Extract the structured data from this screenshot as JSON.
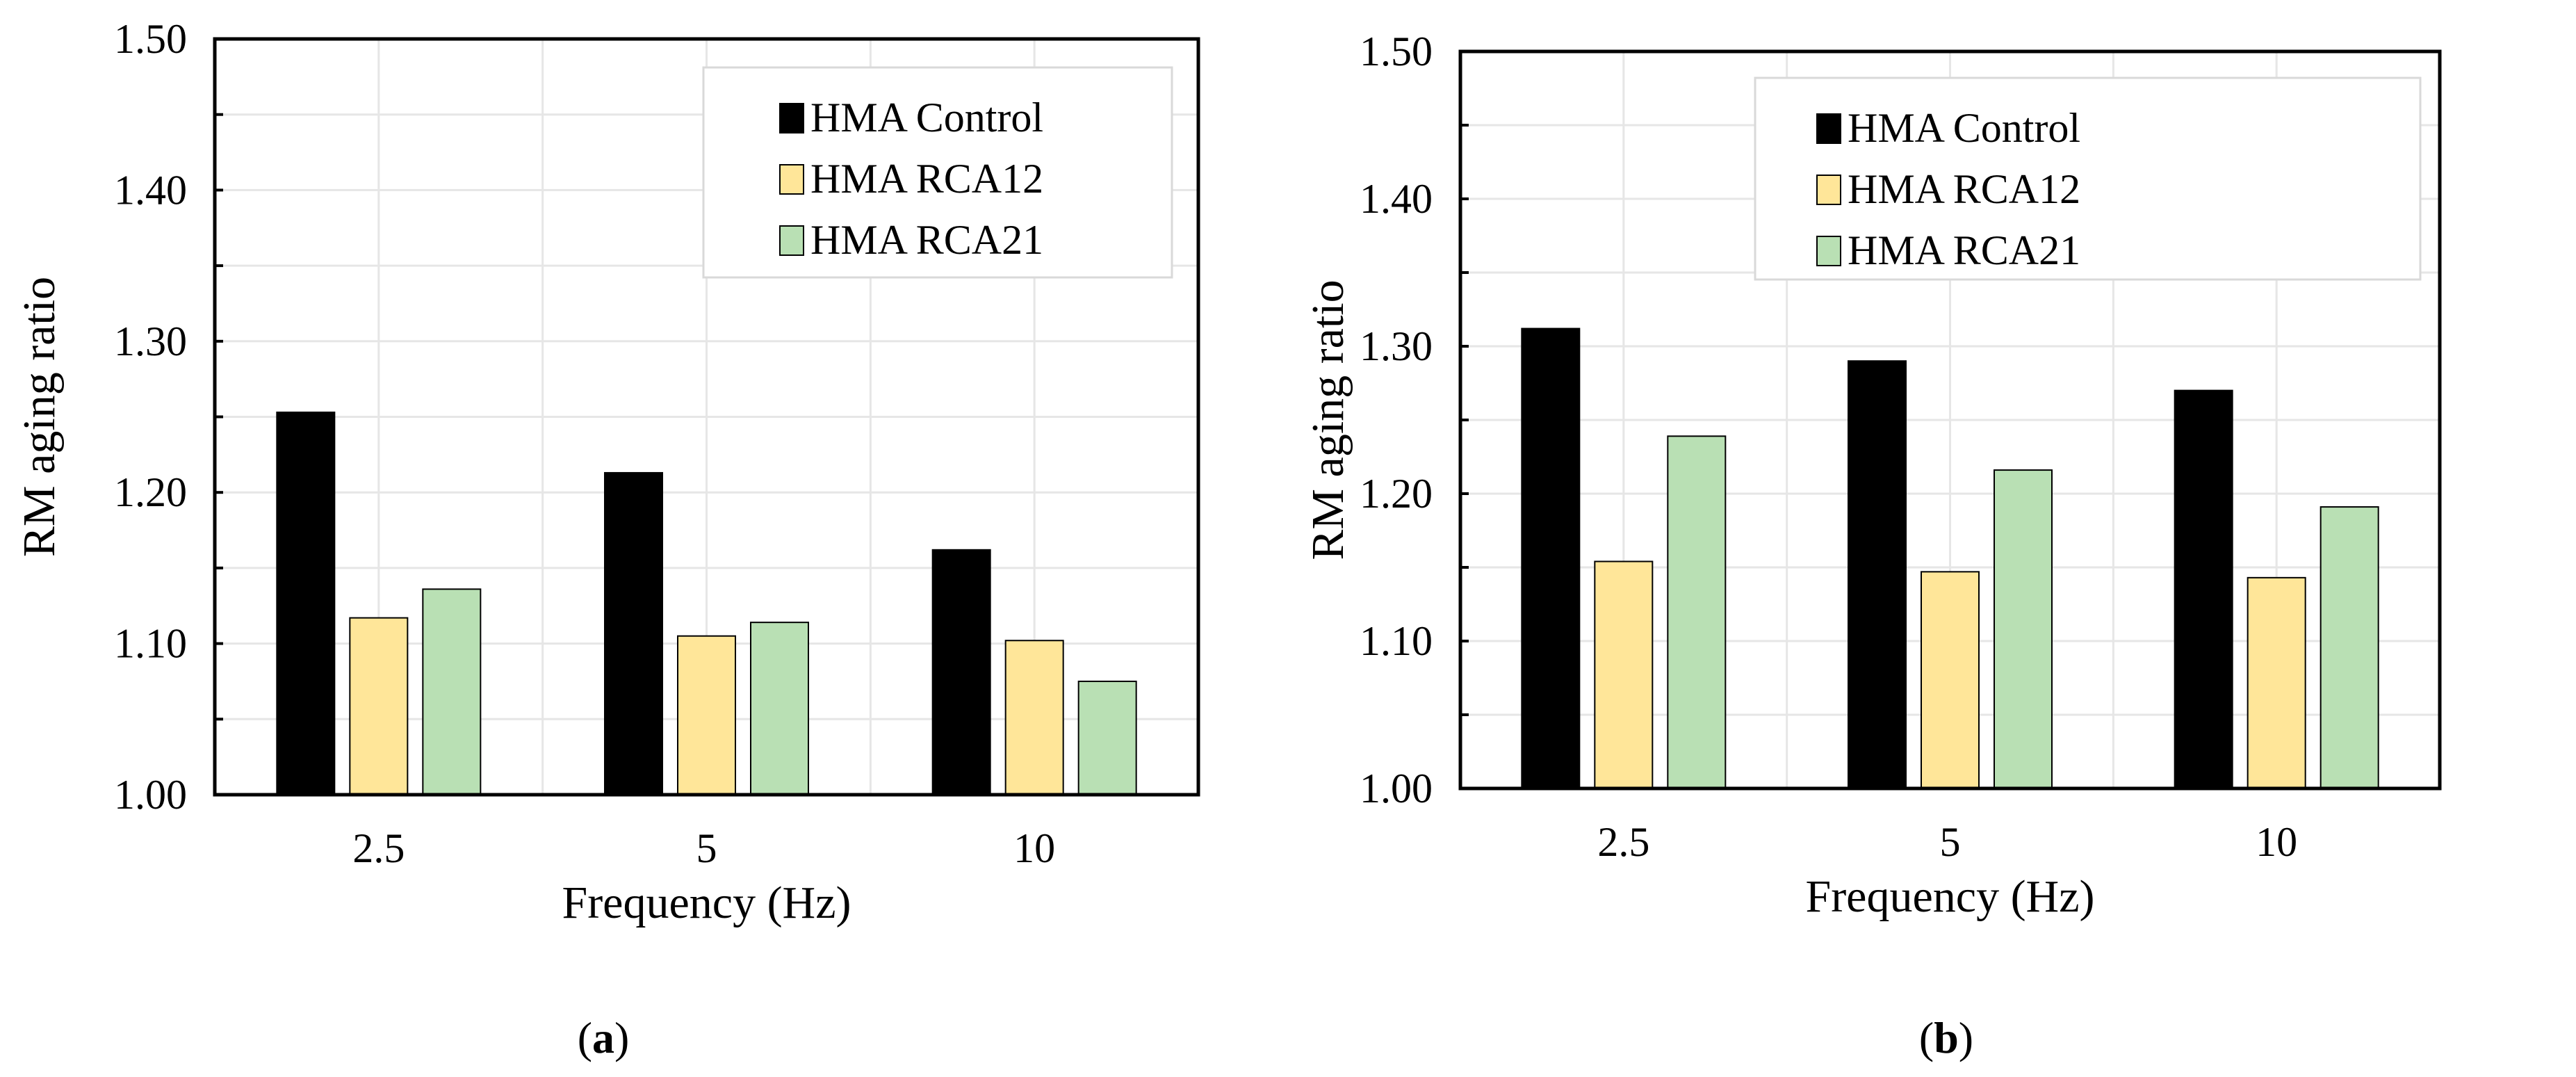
{
  "chart_data": [
    {
      "type": "bar",
      "panel_label": "(a)",
      "panel_letter": "a",
      "xlabel": "Frequency (Hz)",
      "ylabel": "RM aging ratio",
      "categories": [
        "2.5",
        "5",
        "10"
      ],
      "ylim": [
        1.0,
        1.5
      ],
      "yticks": [
        "1.00",
        "1.10",
        "1.20",
        "1.30",
        "1.40",
        "1.50"
      ],
      "grid": true,
      "legend_position": "top-right",
      "series": [
        {
          "name": "HMA Control",
          "color": "#000000",
          "values": [
            1.253,
            1.213,
            1.162
          ]
        },
        {
          "name": "HMA RCA12",
          "color": "#FFE699",
          "values": [
            1.117,
            1.105,
            1.102
          ]
        },
        {
          "name": "HMA RCA21",
          "color": "#B9E0B4",
          "values": [
            1.136,
            1.114,
            1.075
          ]
        }
      ]
    },
    {
      "type": "bar",
      "panel_label": "(b)",
      "panel_letter": "b",
      "xlabel": "Frequency (Hz)",
      "ylabel": "RM aging ratio",
      "categories": [
        "2.5",
        "5",
        "10"
      ],
      "ylim": [
        1.0,
        1.5
      ],
      "yticks": [
        "1.00",
        "1.10",
        "1.20",
        "1.30",
        "1.40",
        "1.50"
      ],
      "grid": true,
      "legend_position": "top-right",
      "series": [
        {
          "name": "HMA Control",
          "color": "#000000",
          "values": [
            1.312,
            1.29,
            1.27
          ]
        },
        {
          "name": "HMA RCA12",
          "color": "#FFE699",
          "values": [
            1.154,
            1.147,
            1.143
          ]
        },
        {
          "name": "HMA RCA21",
          "color": "#B9E0B4",
          "values": [
            1.239,
            1.216,
            1.191
          ]
        }
      ]
    }
  ]
}
